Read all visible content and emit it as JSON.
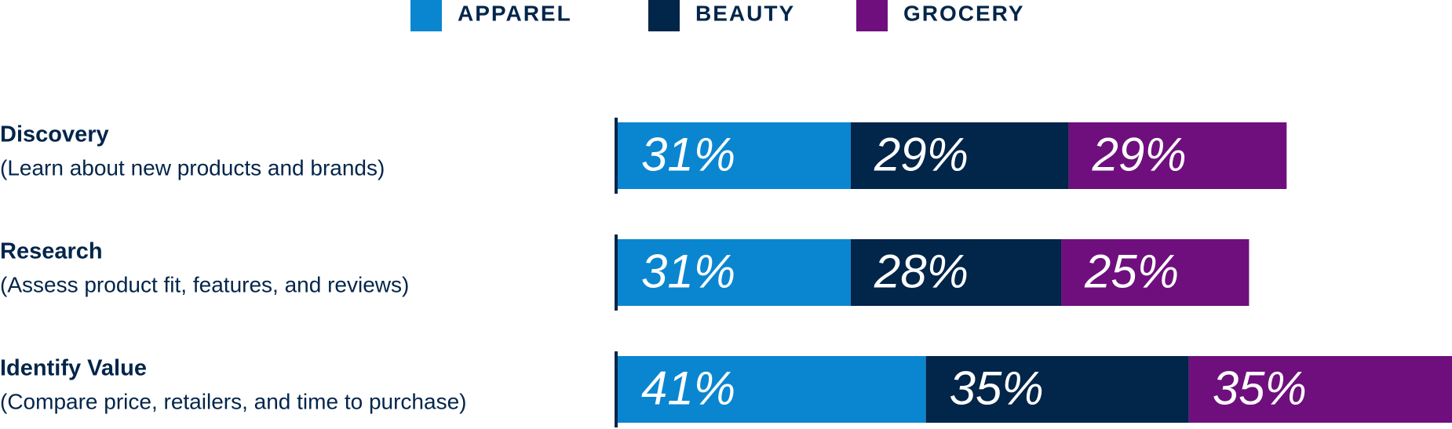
{
  "chart_data": {
    "type": "stacked-barh",
    "categories": [
      "Discovery",
      "Research",
      "Identify Value"
    ],
    "category_descriptions": [
      "(Learn about new products and brands)",
      "(Assess product fit, features, and reviews)",
      "(Compare price, retailers, and time to purchase)"
    ],
    "series": [
      {
        "name": "APPAREL",
        "color": "#0a86d0",
        "values": [
          31,
          31,
          41
        ],
        "value_labels": [
          "31%",
          "31%",
          "41%"
        ]
      },
      {
        "name": "BEAUTY",
        "color": "#02254a",
        "values": [
          29,
          28,
          35
        ],
        "value_labels": [
          "29%",
          "28%",
          "35%"
        ]
      },
      {
        "name": "GROCERY",
        "color": "#6f0f7e",
        "values": [
          29,
          25,
          35
        ],
        "value_labels": [
          "29%",
          "25%",
          "35%"
        ]
      }
    ]
  }
}
